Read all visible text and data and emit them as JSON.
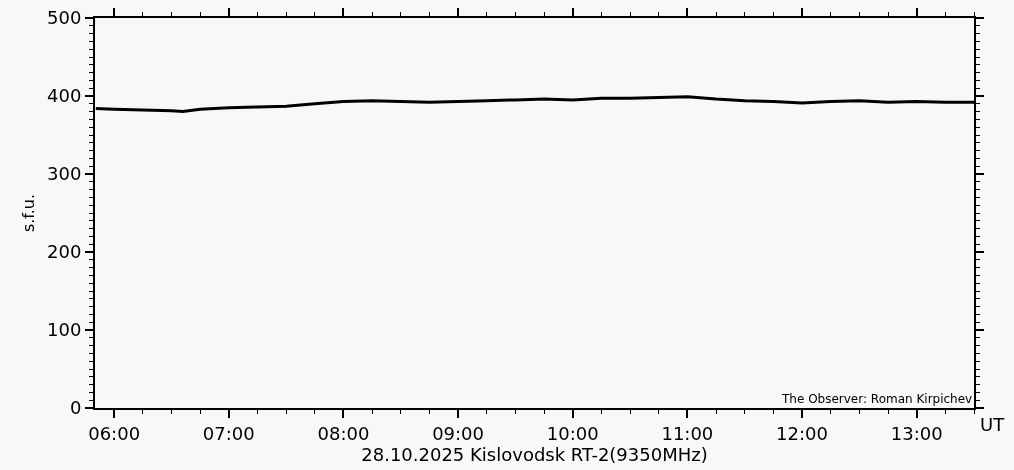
{
  "chart_data": {
    "type": "line",
    "xlabel": "28.10.2025 Kislovodsk RT-2(9350MHz)",
    "ylabel": "s.f.u.",
    "annotations": [
      "The Observer: Roman Kirpichev",
      "UT"
    ],
    "x": [
      5.84,
      6.0,
      6.25,
      6.5,
      6.6,
      6.75,
      7.0,
      7.25,
      7.5,
      7.75,
      8.0,
      8.25,
      8.5,
      8.75,
      9.0,
      9.25,
      9.5,
      9.75,
      10.0,
      10.25,
      10.5,
      10.75,
      11.0,
      11.25,
      11.5,
      11.75,
      12.0,
      12.25,
      12.5,
      12.75,
      13.0,
      13.25,
      13.5
    ],
    "series": [
      {
        "color": "#000000",
        "values": [
          384,
          383,
          382,
          381,
          380,
          383,
          385,
          386,
          387,
          390,
          393,
          394,
          393,
          392,
          393,
          394,
          395,
          396,
          395,
          397,
          397,
          398,
          399,
          396,
          394,
          393,
          391,
          393,
          394,
          392,
          393,
          392,
          392
        ]
      }
    ],
    "xlim": [
      5.833,
      13.5
    ],
    "xticks": [
      {
        "value": 6,
        "label": "06:00"
      },
      {
        "value": 7,
        "label": "07:00"
      },
      {
        "value": 8,
        "label": "08:00"
      },
      {
        "value": 9,
        "label": "09:00"
      },
      {
        "value": 10,
        "label": "10:00"
      },
      {
        "value": 11,
        "label": "11:00"
      },
      {
        "value": 12,
        "label": "12:00"
      },
      {
        "value": 13,
        "label": "13:00"
      }
    ],
    "ylim": [
      0,
      500
    ],
    "yticks": [
      0,
      100,
      200,
      300,
      400,
      500
    ],
    "grid": false,
    "marker": "none",
    "line_style": "solid"
  }
}
